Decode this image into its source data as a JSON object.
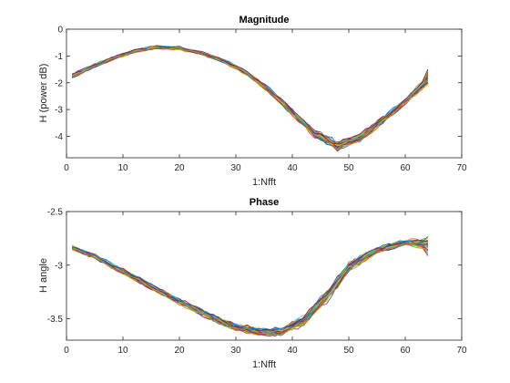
{
  "chart_data": [
    {
      "type": "line",
      "title": "Magnitude",
      "xlabel": "1:Nfft",
      "ylabel": "H (power dB)",
      "xlim": [
        0,
        70
      ],
      "ylim": [
        -4.8,
        0
      ],
      "xticks": [
        0,
        10,
        20,
        30,
        40,
        50,
        60,
        70
      ],
      "yticks": [
        -4,
        -3,
        -2,
        -1,
        0
      ],
      "xtick_labels": [
        "0",
        "10",
        "20",
        "30",
        "40",
        "50",
        "60",
        "70"
      ],
      "ytick_labels": [
        "-4",
        "-3",
        "-2",
        "-1",
        "0"
      ],
      "grid": false,
      "series_count": 40,
      "x": [
        1,
        4,
        8,
        12,
        16,
        20,
        24,
        28,
        32,
        36,
        40,
        44,
        48,
        52,
        56,
        60,
        63,
        64
      ],
      "mean": [
        -1.75,
        -1.45,
        -1.1,
        -0.82,
        -0.67,
        -0.72,
        -0.9,
        -1.2,
        -1.65,
        -2.3,
        -3.1,
        -3.9,
        -4.35,
        -4.05,
        -3.4,
        -2.7,
        -2.1,
        -1.8
      ],
      "spread": [
        0.08,
        0.07,
        0.06,
        0.06,
        0.06,
        0.06,
        0.06,
        0.07,
        0.08,
        0.1,
        0.12,
        0.15,
        0.16,
        0.14,
        0.12,
        0.1,
        0.15,
        0.3
      ],
      "colors": [
        "#0072BD",
        "#D95319",
        "#EDB120",
        "#7E2F8E",
        "#77AC30",
        "#4DBEEE",
        "#A2142F"
      ]
    },
    {
      "type": "line",
      "title": "Phase",
      "xlabel": "1:Nfft",
      "ylabel": "H angle",
      "xlim": [
        0,
        70
      ],
      "ylim": [
        -3.7,
        -2.5
      ],
      "xticks": [
        0,
        10,
        20,
        30,
        40,
        50,
        60,
        70
      ],
      "yticks": [
        -3.5,
        -3,
        -2.5
      ],
      "xtick_labels": [
        "0",
        "10",
        "20",
        "30",
        "40",
        "50",
        "60",
        "70"
      ],
      "ytick_labels": [
        "-3.5",
        "-3",
        "-2.5"
      ],
      "grid": false,
      "series_count": 40,
      "x": [
        1,
        5,
        10,
        15,
        20,
        25,
        30,
        35,
        38,
        42,
        46,
        50,
        55,
        60,
        63,
        64
      ],
      "mean": [
        -2.84,
        -2.92,
        -3.06,
        -3.2,
        -3.34,
        -3.47,
        -3.58,
        -3.63,
        -3.62,
        -3.52,
        -3.3,
        -3.02,
        -2.86,
        -2.79,
        -2.8,
        -2.82
      ],
      "spread": [
        0.02,
        0.02,
        0.025,
        0.025,
        0.025,
        0.03,
        0.03,
        0.035,
        0.035,
        0.045,
        0.05,
        0.045,
        0.03,
        0.025,
        0.04,
        0.08
      ],
      "colors": [
        "#0072BD",
        "#D95319",
        "#EDB120",
        "#7E2F8E",
        "#77AC30",
        "#4DBEEE",
        "#A2142F"
      ]
    }
  ]
}
